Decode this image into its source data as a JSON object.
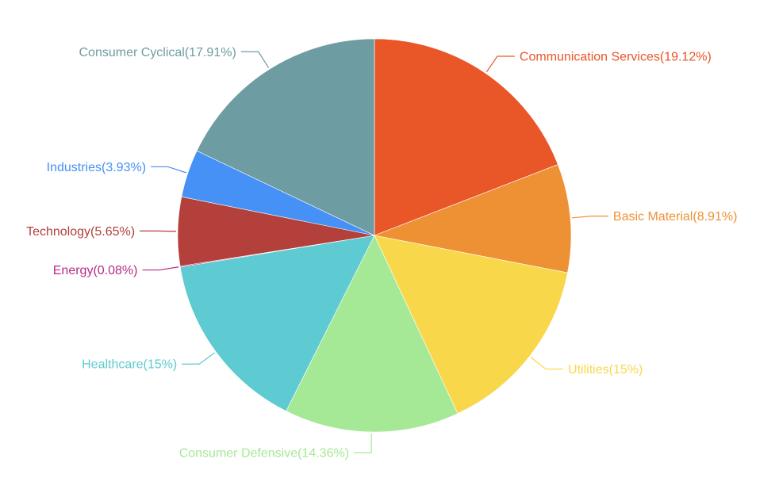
{
  "chart_data": {
    "type": "pie",
    "title": "",
    "start_angle_deg": 90,
    "direction": "clockwise",
    "slices": [
      {
        "name": "Communication Services",
        "value": 19.12,
        "label": "Communication Services(19.12%)",
        "color": "#e95628"
      },
      {
        "name": "Basic Material",
        "value": 8.91,
        "label": "Basic Material(8.91%)",
        "color": "#ee9135"
      },
      {
        "name": "Utilities",
        "value": 15,
        "label": "Utilities(15%)",
        "color": "#f8d84a"
      },
      {
        "name": "Consumer Defensive",
        "value": 14.36,
        "label": "Consumer Defensive(14.36%)",
        "color": "#a5e996"
      },
      {
        "name": "Healthcare",
        "value": 15,
        "label": "Healthcare(15%)",
        "color": "#5ecad1"
      },
      {
        "name": "Energy",
        "value": 0.08,
        "label": "Energy(0.08%)",
        "color": "#b72a82"
      },
      {
        "name": "Technology",
        "value": 5.65,
        "label": "Technology(5.65%)",
        "color": "#b3403a"
      },
      {
        "name": "Industries",
        "value": 3.93,
        "label": "Industries(3.93%)",
        "color": "#4691f5"
      },
      {
        "name": "Consumer Cyclical",
        "value": 17.91,
        "label": "Consumer Cyclical(17.91%)",
        "color": "#6e9ca3"
      }
    ]
  }
}
